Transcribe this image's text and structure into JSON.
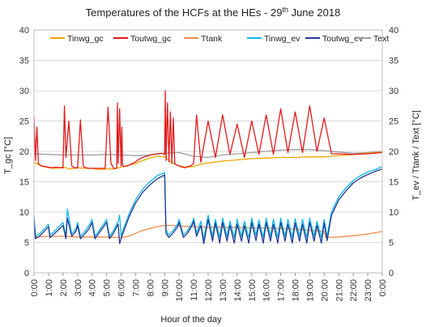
{
  "chart_data": {
    "type": "line",
    "title": "Temperatures of the HCFs at the HEs - 29th June 2018",
    "title_main": "Temperatures of the HCFs at the HEs - 29",
    "title_sup": "th",
    "title_tail": " June 2018",
    "xlabel": "Hour of the day",
    "ylabel_left": "T_gc [°C]",
    "ylabel_right": "T_ev / Ttank / Text [°C]",
    "ylim_left": [
      0,
      40
    ],
    "ylim_right": [
      0,
      40
    ],
    "yticks": [
      "0",
      "5",
      "10",
      "15",
      "20",
      "25",
      "30",
      "35",
      "40"
    ],
    "xlim": [
      0,
      24
    ],
    "xticks": [
      "0:00",
      "1:00",
      "2:00",
      "3:00",
      "4:00",
      "5:00",
      "6:00",
      "7:00",
      "8:00",
      "9:00",
      "10:00",
      "11:00",
      "12:00",
      "13:00",
      "14:00",
      "15:00",
      "16:00",
      "17:00",
      "18:00",
      "19:00",
      "20:00",
      "21:00",
      "22:00",
      "23:00",
      "0:00"
    ],
    "grid": "horizontal",
    "legend_position": "top",
    "series": [
      {
        "name": "Tinwg_gc",
        "color": "#f0a500",
        "x": [
          0,
          0.5,
          1,
          1.5,
          2,
          2.5,
          3,
          3.5,
          4,
          4.5,
          5,
          5.5,
          6,
          6.5,
          7,
          7.5,
          8,
          8.5,
          9,
          9.5,
          10,
          10.5,
          11,
          11.5,
          12,
          13,
          14,
          15,
          16,
          17,
          18,
          19,
          20,
          20.5,
          21,
          22,
          23,
          24
        ],
        "y": [
          18.2,
          17.6,
          17.3,
          17.2,
          17.4,
          17.1,
          17.3,
          17.2,
          17.2,
          17.0,
          17.1,
          17.1,
          17.4,
          17.7,
          18.0,
          18.5,
          18.9,
          19.2,
          19.1,
          18.1,
          17.6,
          17.4,
          17.5,
          17.9,
          18.1,
          18.4,
          18.6,
          18.8,
          18.9,
          19.0,
          19.0,
          19.1,
          19.1,
          19.2,
          19.3,
          19.5,
          19.7,
          19.9
        ]
      },
      {
        "name": "Toutwg_gc",
        "color": "#e41a1c",
        "x": [
          0,
          0.1,
          0.2,
          0.3,
          0.5,
          0.8,
          1.0,
          1.2,
          1.5,
          1.8,
          2.0,
          2.1,
          2.2,
          2.4,
          2.6,
          2.8,
          3.0,
          3.2,
          3.4,
          3.6,
          3.8,
          4.0,
          4.2,
          4.5,
          4.7,
          4.9,
          5.1,
          5.3,
          5.5,
          5.7,
          5.75,
          5.8,
          5.9,
          6.0,
          6.05,
          6.1,
          6.2,
          6.4,
          6.6,
          6.8,
          7.0,
          7.3,
          7.6,
          7.9,
          8.2,
          8.5,
          8.8,
          9.0,
          9.05,
          9.1,
          9.2,
          9.3,
          9.4,
          9.5,
          9.6,
          9.7,
          9.8,
          10.0,
          10.2,
          10.4,
          10.6,
          10.8,
          11.0,
          11.2,
          11.5,
          12.0,
          12.5,
          13.0,
          13.5,
          14.0,
          14.5,
          15.0,
          15.5,
          16.0,
          16.5,
          17.0,
          17.5,
          18.0,
          18.5,
          19.0,
          19.5,
          20.0,
          20.5,
          21,
          22,
          23,
          24
        ],
        "y": [
          25.8,
          18.5,
          24.0,
          18.0,
          17.6,
          17.5,
          17.4,
          17.3,
          17.4,
          17.3,
          17.3,
          27.5,
          19.0,
          25.0,
          17.6,
          17.3,
          17.3,
          25.2,
          17.5,
          17.3,
          17.2,
          17.2,
          17.2,
          17.2,
          17.2,
          17.2,
          27.3,
          18.0,
          17.2,
          17.2,
          28.0,
          18.0,
          27.0,
          17.6,
          24.0,
          17.8,
          17.5,
          17.6,
          17.8,
          18.0,
          18.3,
          18.8,
          19.1,
          19.3,
          19.5,
          19.6,
          19.7,
          19.5,
          30.0,
          18.5,
          28.0,
          18.3,
          26.5,
          18.0,
          25.5,
          18.0,
          17.8,
          17.6,
          17.4,
          17.3,
          17.5,
          17.6,
          18.0,
          26.0,
          18.2,
          25.0,
          19.0,
          26.0,
          19.5,
          24.5,
          19.0,
          25.0,
          19.5,
          26.0,
          19.5,
          27.0,
          19.8,
          26.5,
          19.8,
          27.5,
          20.0,
          25.5,
          19.6,
          19.6,
          19.5,
          19.6,
          19.8
        ]
      },
      {
        "name": "Ttank",
        "color": "#f08a4b",
        "x": [
          0,
          1,
          2,
          3,
          4,
          5,
          5.8,
          6,
          6.5,
          7,
          7.5,
          8,
          8.5,
          9,
          9.5,
          10,
          11,
          12,
          13,
          14,
          15,
          16,
          17,
          18,
          19,
          20,
          20.1,
          21,
          22,
          23,
          24
        ],
        "y": [
          5.9,
          6.0,
          6.0,
          5.9,
          5.9,
          5.9,
          5.8,
          5.8,
          6.0,
          6.5,
          7.0,
          7.3,
          7.6,
          7.8,
          7.8,
          7.7,
          7.6,
          7.5,
          7.5,
          7.5,
          7.4,
          7.4,
          7.3,
          7.2,
          7.0,
          6.8,
          5.8,
          5.9,
          6.1,
          6.4,
          6.8
        ]
      },
      {
        "name": "Tinwg_ev",
        "color": "#13b5e6",
        "x": [
          0,
          0.1,
          0.4,
          0.7,
          1.0,
          1.1,
          1.3,
          1.6,
          2.0,
          2.2,
          2.3,
          2.6,
          2.9,
          3.0,
          3.2,
          3.5,
          3.8,
          4.0,
          4.2,
          4.5,
          4.8,
          5.0,
          5.2,
          5.5,
          5.8,
          5.9,
          6.0,
          6.2,
          6.6,
          7.0,
          7.5,
          8.0,
          8.5,
          8.9,
          9.0,
          9.1,
          9.3,
          9.6,
          9.9,
          10.0,
          10.3,
          10.6,
          10.9,
          11.0,
          11.2,
          11.5,
          11.7,
          12.0,
          12.3,
          12.5,
          12.8,
          13.0,
          13.3,
          13.5,
          13.8,
          14.0,
          14.3,
          14.5,
          14.8,
          15.0,
          15.3,
          15.5,
          15.8,
          16.0,
          16.3,
          16.5,
          16.8,
          17.0,
          17.3,
          17.5,
          17.8,
          18.0,
          18.3,
          18.5,
          18.8,
          19.0,
          19.3,
          19.5,
          19.8,
          20.0,
          20.2,
          20.5,
          21.0,
          21.5,
          22.0,
          22.5,
          23.0,
          23.5,
          24
        ],
        "y": [
          9.5,
          6.0,
          6.5,
          7.2,
          8.0,
          6.2,
          6.6,
          7.3,
          8.3,
          6.0,
          10.5,
          6.4,
          7.3,
          8.3,
          6.0,
          6.8,
          7.8,
          8.8,
          6.0,
          7.0,
          8.0,
          8.8,
          6.0,
          7.0,
          8.5,
          9.5,
          6.0,
          7.5,
          10.0,
          12.0,
          13.8,
          15.0,
          16.0,
          16.4,
          16.5,
          7.0,
          6.2,
          7.0,
          8.0,
          8.8,
          6.2,
          7.0,
          8.2,
          9.0,
          6.5,
          8.5,
          5.5,
          9.5,
          6.0,
          8.8,
          5.8,
          9.0,
          6.0,
          8.5,
          5.8,
          8.8,
          6.0,
          8.5,
          5.8,
          9.0,
          6.2,
          8.7,
          5.8,
          9.0,
          6.0,
          8.8,
          5.8,
          9.0,
          6.0,
          8.8,
          5.8,
          8.9,
          6.0,
          8.8,
          5.8,
          9.0,
          6.0,
          8.5,
          5.8,
          8.8,
          6.0,
          10.0,
          12.5,
          14.0,
          15.2,
          16.0,
          16.6,
          17.0,
          17.5
        ]
      },
      {
        "name": "Toutwg_ev",
        "color": "#1f3a93",
        "x": [
          0,
          0.1,
          0.4,
          0.7,
          1.0,
          1.1,
          1.3,
          1.6,
          2.0,
          2.2,
          2.3,
          2.6,
          2.9,
          3.0,
          3.2,
          3.5,
          3.8,
          4.0,
          4.2,
          4.5,
          4.8,
          5.0,
          5.2,
          5.5,
          5.8,
          5.9,
          6.0,
          6.2,
          6.6,
          7.0,
          7.5,
          8.0,
          8.5,
          8.9,
          9.0,
          9.1,
          9.3,
          9.6,
          9.9,
          10.0,
          10.3,
          10.6,
          10.9,
          11.0,
          11.2,
          11.5,
          11.7,
          12.0,
          12.3,
          12.5,
          12.8,
          13.0,
          13.3,
          13.5,
          13.8,
          14.0,
          14.3,
          14.5,
          14.8,
          15.0,
          15.3,
          15.5,
          15.8,
          16.0,
          16.3,
          16.5,
          16.8,
          17.0,
          17.3,
          17.5,
          17.8,
          18.0,
          18.3,
          18.5,
          18.8,
          19.0,
          19.3,
          19.5,
          19.8,
          20.0,
          20.2,
          20.5,
          21.0,
          21.5,
          22.0,
          22.5,
          23.0,
          23.5,
          24
        ],
        "y": [
          8.8,
          5.6,
          6.1,
          6.8,
          7.6,
          5.8,
          6.2,
          6.9,
          7.8,
          5.6,
          9.0,
          6.0,
          6.9,
          7.8,
          5.6,
          6.4,
          7.3,
          8.3,
          5.6,
          6.6,
          7.6,
          8.3,
          5.6,
          6.6,
          8.0,
          4.8,
          5.6,
          7.0,
          9.5,
          11.5,
          13.3,
          14.5,
          15.5,
          16.0,
          16.1,
          6.5,
          5.8,
          6.6,
          7.6,
          8.3,
          5.8,
          6.6,
          7.8,
          8.5,
          6.0,
          7.8,
          4.8,
          8.8,
          5.2,
          8.2,
          4.9,
          8.3,
          5.2,
          7.8,
          4.9,
          8.0,
          5.2,
          7.8,
          4.9,
          8.3,
          5.3,
          8.0,
          4.9,
          8.3,
          5.2,
          8.0,
          4.9,
          8.3,
          5.2,
          8.0,
          4.9,
          8.2,
          5.2,
          8.0,
          4.9,
          8.3,
          5.2,
          7.8,
          4.9,
          8.2,
          5.3,
          9.5,
          12.0,
          13.5,
          14.8,
          15.6,
          16.2,
          16.7,
          17.1
        ]
      },
      {
        "name": "Text",
        "color": "#9e9e9e",
        "x": [
          0,
          1,
          2,
          3,
          4,
          5,
          6,
          7,
          8,
          9,
          10,
          11,
          12,
          13,
          14,
          15,
          16,
          17,
          18,
          19,
          20,
          21,
          22,
          23,
          24
        ],
        "y": [
          19.6,
          19.5,
          19.4,
          19.4,
          19.4,
          19.5,
          19.4,
          19.3,
          19.4,
          19.7,
          19.8,
          19.2,
          19.0,
          19.4,
          19.6,
          19.8,
          20.0,
          20.2,
          20.3,
          20.3,
          20.1,
          19.9,
          19.7,
          19.8,
          20.0
        ]
      }
    ]
  }
}
